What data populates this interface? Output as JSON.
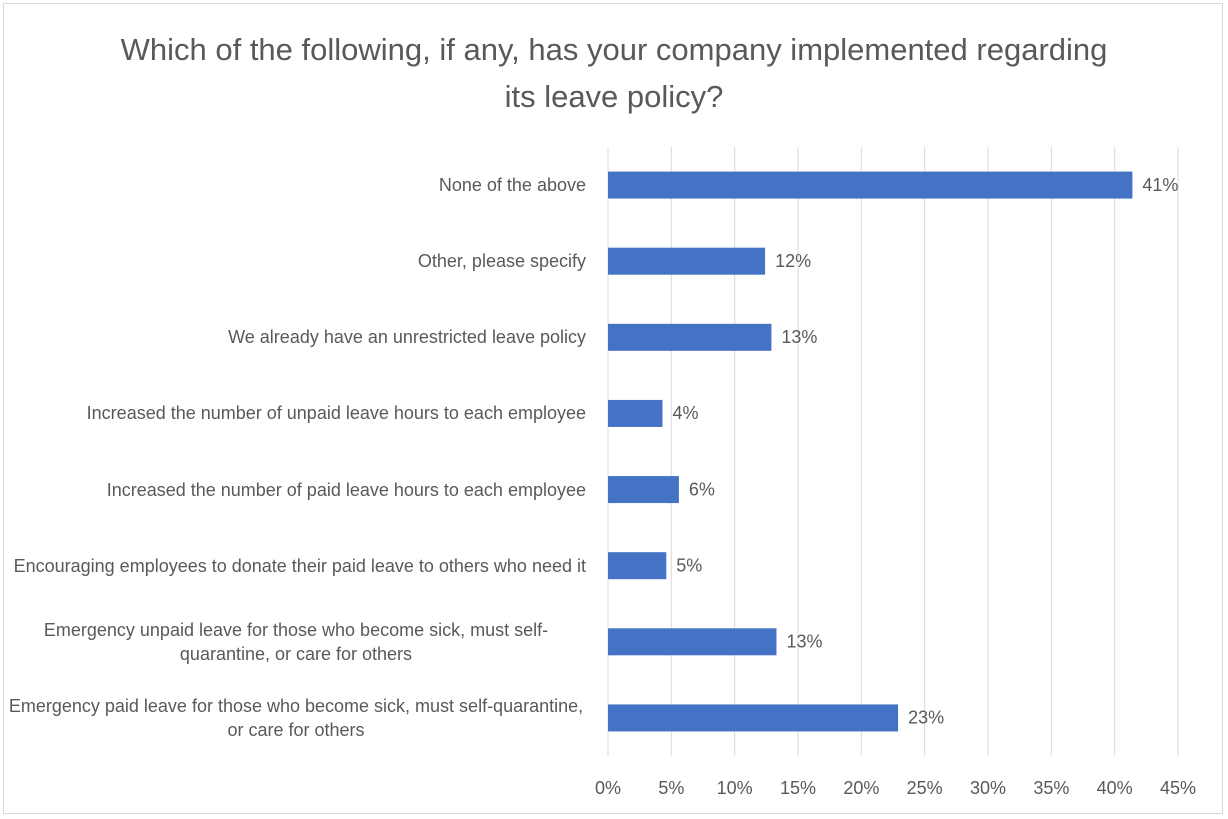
{
  "chart_data": {
    "type": "barh",
    "title": "Which of the following, if any, has your company implemented regarding its leave policy?",
    "categories": [
      "None of the above",
      "Other, please specify",
      "We already have an unrestricted leave policy",
      "Increased the number of unpaid leave hours to each employee",
      "Increased the number of paid leave hours to each employee",
      "Encouraging employees to donate their paid leave to others who need it",
      "Emergency unpaid leave for those who become sick, must self-quarantine, or care for others",
      "Emergency paid leave for those who become sick, must self-quarantine, or care for others"
    ],
    "values": [
      41.4,
      12.4,
      12.9,
      4.3,
      5.6,
      4.6,
      13.3,
      22.9
    ],
    "value_labels": [
      "41%",
      "12%",
      "13%",
      "4%",
      "6%",
      "5%",
      "13%",
      "23%"
    ],
    "color": "#4472c4",
    "xlim": [
      0,
      45
    ],
    "xticks": [
      {
        "value": 0,
        "label": "0%"
      },
      {
        "value": 5,
        "label": "5%"
      },
      {
        "value": 10,
        "label": "10%"
      },
      {
        "value": 15,
        "label": "15%"
      },
      {
        "value": 20,
        "label": "20%"
      },
      {
        "value": 25,
        "label": "25%"
      },
      {
        "value": 30,
        "label": "30%"
      },
      {
        "value": 35,
        "label": "35%"
      },
      {
        "value": 40,
        "label": "40%"
      },
      {
        "value": 45,
        "label": "45%"
      }
    ],
    "grid": true
  }
}
